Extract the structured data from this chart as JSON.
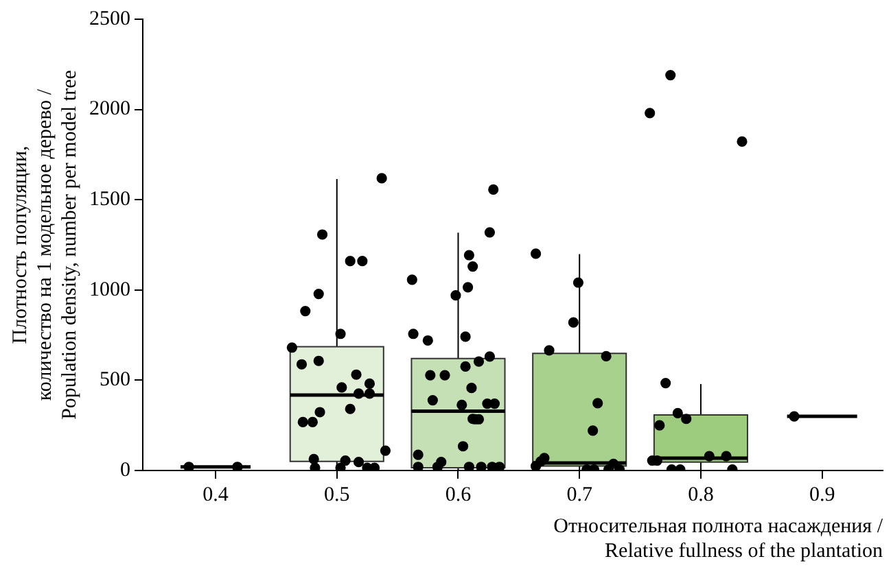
{
  "chart_data": {
    "type": "box",
    "xlabel": "Относительная полнота насаждения /\nRelative fullness of the plantation",
    "ylabel": "Плотность популяции,\nколичество на 1 модельное дерево /\nPopulation density, number per model tree",
    "xlim": [
      0.34,
      0.95
    ],
    "xticks": [
      0.4,
      0.5,
      0.6,
      0.7,
      0.8,
      0.9
    ],
    "ylim": [
      0,
      2500
    ],
    "yticks": [
      0,
      500,
      1000,
      1500,
      2000,
      2500
    ],
    "grid": false,
    "legend": false,
    "marker": "circle",
    "series": [
      {
        "type": "box",
        "x": [
          0.4,
          0.5,
          0.6,
          0.7,
          0.8,
          0.9
        ],
        "colors": [
          null,
          "#e2efd9",
          "#c5e0b4",
          "#a9d18e",
          "#9dcc7f",
          null
        ],
        "boxes": [
          {
            "low": 20,
            "q1": 20,
            "median": 20,
            "q3": 20,
            "high": 20
          },
          {
            "low": 0,
            "q1": 50,
            "median": 418,
            "q3": 686,
            "high": 1615
          },
          {
            "low": 0,
            "q1": 15,
            "median": 329,
            "q3": 620,
            "high": 1317
          },
          {
            "low": 0,
            "q1": 25,
            "median": 42,
            "q3": 649,
            "high": 1199
          },
          {
            "low": 0,
            "q1": 47,
            "median": 68,
            "q3": 308,
            "high": 479
          },
          {
            "low": 300,
            "q1": 300,
            "median": 300,
            "q3": 300,
            "high": 300
          }
        ]
      },
      {
        "type": "scatter",
        "color": "#000000",
        "x": [
          0.378,
          0.418,
          0.537,
          0.488,
          0.511,
          0.521,
          0.485,
          0.474,
          0.503,
          0.463,
          0.471,
          0.485,
          0.516,
          0.527,
          0.504,
          0.518,
          0.527,
          0.486,
          0.472,
          0.48,
          0.511,
          0.54,
          0.481,
          0.507,
          0.518,
          0.482,
          0.503,
          0.525,
          0.531,
          0.562,
          0.563,
          0.575,
          0.609,
          0.612,
          0.608,
          0.598,
          0.606,
          0.577,
          0.589,
          0.606,
          0.611,
          0.579,
          0.603,
          0.612,
          0.604,
          0.567,
          0.586,
          0.629,
          0.626,
          0.626,
          0.617,
          0.624,
          0.63,
          0.614,
          0.617,
          0.567,
          0.583,
          0.609,
          0.619,
          0.628,
          0.634,
          0.664,
          0.699,
          0.695,
          0.675,
          0.722,
          0.715,
          0.711,
          0.758,
          0.664,
          0.668,
          0.671,
          0.706,
          0.712,
          0.724,
          0.733,
          0.728,
          0.775,
          0.834,
          0.771,
          0.781,
          0.788,
          0.766,
          0.807,
          0.821,
          0.76,
          0.764,
          0.776,
          0.783,
          0.826,
          0.877
        ],
        "values": [
          20,
          20,
          1619,
          1307,
          1160,
          1160,
          978,
          883,
          757,
          681,
          588,
          607,
          531,
          481,
          460,
          426,
          426,
          323,
          268,
          268,
          341,
          110,
          63,
          55,
          47,
          15,
          15,
          15,
          15,
          1057,
          757,
          720,
          1193,
          1130,
          1015,
          970,
          741,
          528,
          528,
          576,
          457,
          389,
          363,
          286,
          134,
          87,
          47,
          1556,
          1319,
          631,
          604,
          370,
          370,
          284,
          284,
          20,
          20,
          20,
          20,
          20,
          20,
          1201,
          1041,
          820,
          665,
          633,
          373,
          221,
          1980,
          24,
          50,
          69,
          5,
          5,
          5,
          5,
          37,
          2190,
          1822,
          484,
          318,
          286,
          250,
          79,
          79,
          55,
          55,
          5,
          5,
          5,
          300
        ]
      }
    ]
  }
}
